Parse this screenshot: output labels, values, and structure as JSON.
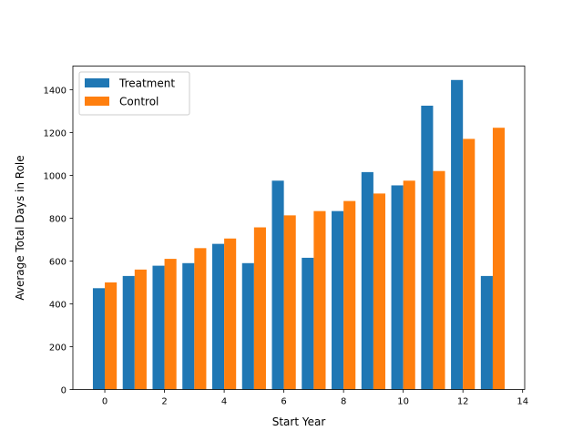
{
  "chart_data": {
    "type": "bar",
    "title": "",
    "xlabel": "Start Year",
    "ylabel": "Average Total Days in Role",
    "x": [
      0,
      1,
      2,
      3,
      4,
      5,
      6,
      7,
      8,
      9,
      10,
      11,
      12,
      13
    ],
    "series": [
      {
        "name": "Treatment",
        "color": "#1f77b4",
        "values": [
          473,
          530,
          578,
          590,
          680,
          590,
          975,
          615,
          833,
          1015,
          953,
          1325,
          1445,
          530
        ]
      },
      {
        "name": "Control",
        "color": "#ff7f0e",
        "values": [
          500,
          560,
          610,
          660,
          705,
          757,
          813,
          833,
          880,
          915,
          975,
          1020,
          1170,
          1222
        ]
      }
    ],
    "xlim": [
      -1.07,
      14.07
    ],
    "ylim": [
      0,
      1510
    ],
    "xticks": [
      0,
      2,
      4,
      6,
      8,
      10,
      12,
      14
    ],
    "yticks": [
      0,
      200,
      400,
      600,
      800,
      1000,
      1200,
      1400
    ],
    "grid": false,
    "legend": "top-left"
  }
}
